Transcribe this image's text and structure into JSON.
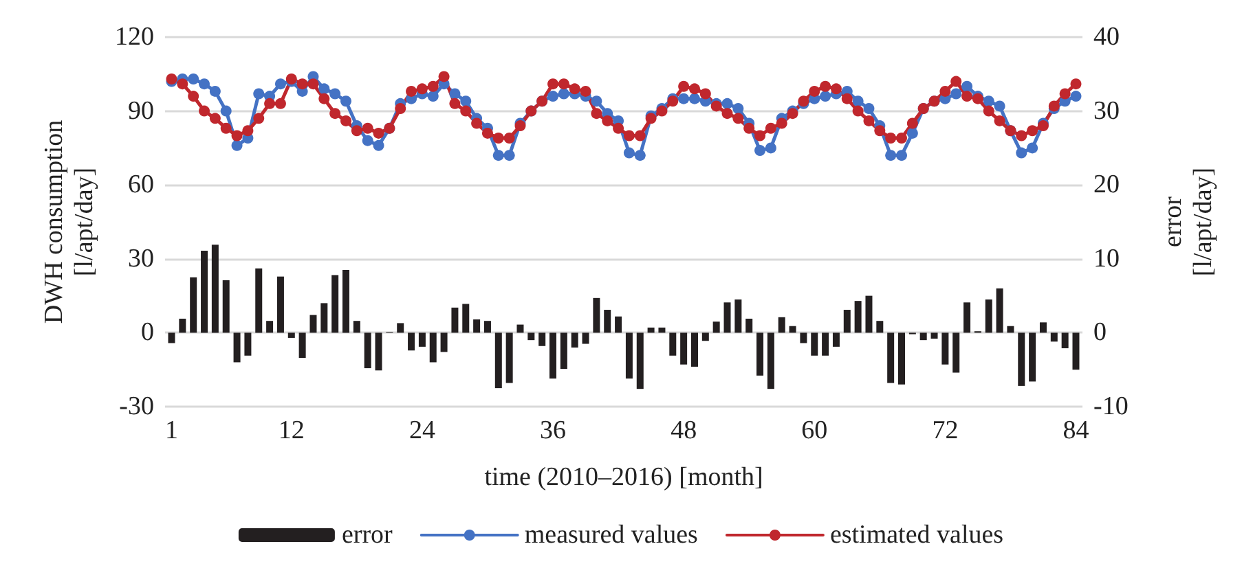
{
  "chart_data": {
    "type": "line",
    "xlabel": "time (2010–2016) [month]",
    "ylabel": "DWH consumption\n[l/apt/day]",
    "y2label": "error\n[l/apt/day]",
    "x": [
      1,
      2,
      3,
      4,
      5,
      6,
      7,
      8,
      9,
      10,
      11,
      12,
      13,
      14,
      15,
      16,
      17,
      18,
      19,
      20,
      21,
      22,
      23,
      24,
      25,
      26,
      27,
      28,
      29,
      30,
      31,
      32,
      33,
      34,
      35,
      36,
      37,
      38,
      39,
      40,
      41,
      42,
      43,
      44,
      45,
      46,
      47,
      48,
      49,
      50,
      51,
      52,
      53,
      54,
      55,
      56,
      57,
      58,
      59,
      60,
      61,
      62,
      63,
      64,
      65,
      66,
      67,
      68,
      69,
      70,
      71,
      72,
      73,
      74,
      75,
      76,
      77,
      78,
      79,
      80,
      81,
      82,
      83,
      84
    ],
    "xlim": [
      0.4,
      84.6
    ],
    "xticks": [
      1,
      12,
      24,
      36,
      48,
      60,
      72,
      84
    ],
    "ylim": [
      -30,
      120
    ],
    "yticks": [
      -30,
      0,
      30,
      60,
      90,
      120
    ],
    "y2lim": [
      -10,
      40
    ],
    "y2ticks": [
      -10,
      0,
      10,
      20,
      30,
      40
    ],
    "grid": "y",
    "legend": "bottom",
    "marker": "circle",
    "series": [
      {
        "name": "error",
        "type": "bar",
        "axis": "y2",
        "color": "#231f20",
        "values": [
          -1.4,
          1.9,
          7.5,
          11.1,
          11.9,
          7.1,
          -4,
          -3.1,
          8.7,
          1.6,
          7.6,
          -0.7,
          -3.4,
          2.4,
          4,
          7.8,
          8.5,
          1.6,
          -4.8,
          -5.1,
          0.1,
          1.3,
          -2.4,
          -1.9,
          -4,
          -2.6,
          3.4,
          3.9,
          1.8,
          1.6,
          -7.5,
          -6.8,
          1.1,
          -1,
          -1.8,
          -6.2,
          -4.9,
          -2,
          -1.5,
          4.7,
          3.1,
          2.2,
          -6.2,
          -7.6,
          0.7,
          0.7,
          -3.1,
          -4.3,
          -4.6,
          -1.1,
          1.5,
          4.1,
          4.5,
          1.9,
          -5.8,
          -7.6,
          2.1,
          0.9,
          -1.4,
          -3.1,
          -3.1,
          -1.9,
          3.1,
          4.3,
          5,
          1.6,
          -6.8,
          -7,
          -0.2,
          -1,
          -0.8,
          -4.3,
          -5.4,
          4.1,
          0.2,
          4.5,
          6,
          0.9,
          -7.2,
          -6.6,
          1.4,
          -1.2,
          -2.1,
          -5
        ]
      },
      {
        "name": "measured values",
        "color": "#4472c4",
        "values": [
          102,
          103,
          103,
          101,
          98,
          90,
          76,
          79,
          97,
          96,
          101,
          102,
          98,
          104,
          99,
          97,
          94,
          84,
          78,
          76,
          83,
          93,
          95,
          97,
          96,
          101,
          97,
          94,
          87,
          83,
          72,
          72,
          85,
          90,
          94,
          96,
          97,
          97,
          96,
          94,
          89,
          86,
          73,
          72,
          88,
          91,
          95,
          95,
          95,
          94,
          93,
          93,
          91,
          85,
          74,
          75,
          87,
          90,
          93,
          95,
          96,
          97,
          98,
          94,
          91,
          84,
          72,
          72,
          81,
          91,
          94,
          95,
          97,
          100,
          96,
          94,
          92,
          82,
          73,
          75,
          85,
          91,
          94,
          96
        ]
      },
      {
        "name": "estimated values",
        "color": "#c0272d",
        "values": [
          103,
          101,
          96,
          90,
          87,
          83,
          80,
          82,
          87,
          93,
          93,
          103,
          101,
          101,
          95,
          89,
          86,
          82,
          83,
          81,
          83,
          91,
          98,
          99,
          100,
          104,
          93,
          90,
          85,
          81,
          79,
          79,
          84,
          90,
          94,
          101,
          101,
          99,
          98,
          89,
          86,
          83,
          80,
          80,
          87,
          90,
          94,
          100,
          99,
          97,
          92,
          89,
          87,
          83,
          80,
          83,
          85,
          89,
          94,
          98,
          100,
          99,
          95,
          90,
          86,
          82,
          79,
          79,
          85,
          91,
          94,
          98,
          102,
          96,
          95,
          90,
          86,
          82,
          80,
          82,
          84,
          92,
          97,
          101
        ]
      }
    ]
  }
}
